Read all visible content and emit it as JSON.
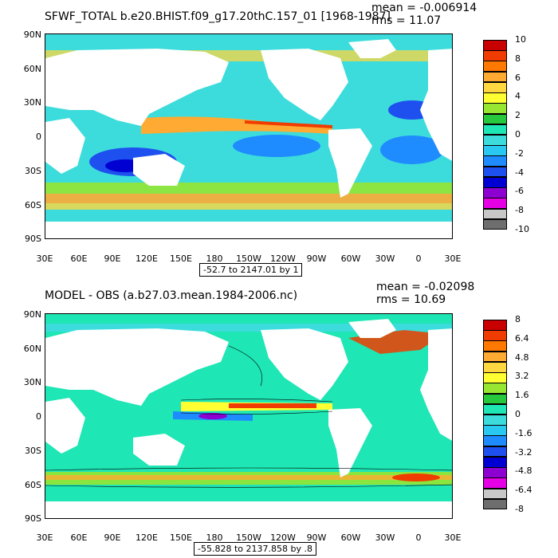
{
  "panels": [
    {
      "title": "SFWF_TOTAL b.e20.BHIST.f09_g17.20thC.157_01 [1968-1987]",
      "mean_text": "mean = -0.006914",
      "rms_text": "rms = 11.07",
      "range_text": "-52.7 to 2147.01 by 1",
      "lat_labels": [
        "90N",
        "60N",
        "30N",
        "0",
        "30S",
        "60S",
        "90S"
      ],
      "lon_labels": [
        "30E",
        "60E",
        "90E",
        "120E",
        "150E",
        "180",
        "150W",
        "120W",
        "90W",
        "60W",
        "30W",
        "0",
        "30E"
      ],
      "colorbar": {
        "labels": [
          "10",
          "8",
          "6",
          "4",
          "2",
          "0",
          "-2",
          "-4",
          "-6",
          "-8",
          "-10"
        ],
        "colors": [
          "#c80000",
          "#f03c00",
          "#ff7800",
          "#ffaa32",
          "#ffd740",
          "#ffff32",
          "#96e632",
          "#28c83c",
          "#1ee6b4",
          "#3cdcdc",
          "#28c8f0",
          "#1e8cff",
          "#1e50f0",
          "#0000d2",
          "#8c00d2",
          "#e600e6",
          "#c8c8c8",
          "#6e6e6e"
        ]
      }
    },
    {
      "title": "MODEL - OBS (a.b27.03.mean.1984-2006.nc)",
      "mean_text": "mean = -0.02098",
      "rms_text": "rms = 10.69",
      "range_text": "-55.828 to 2137.858 by .8",
      "lat_labels": [
        "90N",
        "60N",
        "30N",
        "0",
        "30S",
        "60S",
        "90S"
      ],
      "lon_labels": [
        "30E",
        "60E",
        "90E",
        "120E",
        "150E",
        "180",
        "150W",
        "120W",
        "90W",
        "60W",
        "30W",
        "0",
        "30E"
      ],
      "colorbar": {
        "labels": [
          "8",
          "6.4",
          "4.8",
          "3.2",
          "1.6",
          "0",
          "-1.6",
          "-3.2",
          "-4.8",
          "-6.4",
          "-8"
        ],
        "colors": [
          "#c80000",
          "#f03c00",
          "#ff7800",
          "#ffaa32",
          "#ffd740",
          "#ffff32",
          "#96e632",
          "#28c83c",
          "#1ee6b4",
          "#3cdcdc",
          "#28c8f0",
          "#1e8cff",
          "#1e50f0",
          "#0000d2",
          "#8c00d2",
          "#e600e6",
          "#c8c8c8",
          "#6e6e6e"
        ]
      }
    }
  ]
}
